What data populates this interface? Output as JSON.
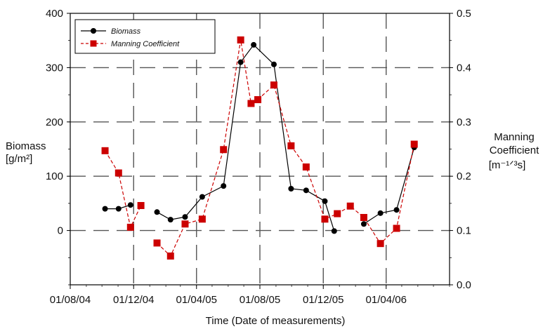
{
  "chart_data": {
    "type": "line",
    "title": "",
    "xlabel": "Time (Date of measurements)",
    "x_ticks": [
      "01/08/04",
      "01/12/04",
      "01/04/05",
      "01/08/05",
      "01/12/05",
      "01/04/06"
    ],
    "x_range": [
      "2004-08-01",
      "2006-08-01"
    ],
    "y_left": {
      "label_line1": "Biomass",
      "label_line2": "[g/m²]",
      "range": [
        -100,
        400
      ],
      "ticks": [
        0,
        100,
        200,
        300,
        400
      ]
    },
    "y_right": {
      "label_line1": "Manning",
      "label_line2": "Coefficient",
      "label_line3": "[m⁻¹ᐟ³s]",
      "range": [
        0.0,
        0.5
      ],
      "ticks": [
        "0.0",
        "0.1",
        "0.2",
        "0.3",
        "0.4",
        "0.5"
      ]
    },
    "grid": "dashed",
    "legend": "top-left",
    "series": [
      {
        "name": "Biomass",
        "axis": "left",
        "color": "#000000",
        "marker": "circle",
        "segments": [
          [
            {
              "x": "2004-10-07",
              "y": 40
            },
            {
              "x": "2004-11-02",
              "y": 40
            },
            {
              "x": "2004-11-25",
              "y": 47
            }
          ],
          [
            {
              "x": "2005-01-15",
              "y": 34
            },
            {
              "x": "2005-02-10",
              "y": 20
            },
            {
              "x": "2005-03-10",
              "y": 25
            },
            {
              "x": "2005-04-12",
              "y": 62
            },
            {
              "x": "2005-05-23",
              "y": 82
            },
            {
              "x": "2005-06-25",
              "y": 310
            },
            {
              "x": "2005-07-20",
              "y": 342
            },
            {
              "x": "2005-08-28",
              "y": 306
            },
            {
              "x": "2005-09-30",
              "y": 77
            },
            {
              "x": "2005-10-29",
              "y": 74
            },
            {
              "x": "2005-12-04",
              "y": 54
            },
            {
              "x": "2005-12-22",
              "y": -1
            }
          ],
          [
            {
              "x": "2006-02-17",
              "y": 12
            },
            {
              "x": "2006-03-21",
              "y": 32
            },
            {
              "x": "2006-04-21",
              "y": 38
            },
            {
              "x": "2006-05-25",
              "y": 153
            }
          ]
        ]
      },
      {
        "name": "Manning Coefficient",
        "axis": "right",
        "color": "#cc0000",
        "marker": "square",
        "segments": [
          [
            {
              "x": "2004-10-07",
              "y": 0.247
            },
            {
              "x": "2004-11-02",
              "y": 0.206
            },
            {
              "x": "2004-11-25",
              "y": 0.106
            },
            {
              "x": "2004-12-15",
              "y": 0.146
            }
          ],
          [
            {
              "x": "2005-01-15",
              "y": 0.077
            },
            {
              "x": "2005-02-10",
              "y": 0.053
            },
            {
              "x": "2005-03-10",
              "y": 0.112
            },
            {
              "x": "2005-04-12",
              "y": 0.121
            },
            {
              "x": "2005-05-23",
              "y": 0.249
            },
            {
              "x": "2005-06-25",
              "y": 0.451
            },
            {
              "x": "2005-07-15",
              "y": 0.334
            }
          ],
          [
            {
              "x": "2005-07-28",
              "y": 0.341
            },
            {
              "x": "2005-08-28",
              "y": 0.368
            },
            {
              "x": "2005-09-30",
              "y": 0.256
            },
            {
              "x": "2005-10-29",
              "y": 0.217
            },
            {
              "x": "2005-12-04",
              "y": 0.121
            },
            {
              "x": "2005-12-28",
              "y": 0.131
            },
            {
              "x": "2006-01-22",
              "y": 0.145
            },
            {
              "x": "2006-02-17",
              "y": 0.124
            },
            {
              "x": "2006-03-21",
              "y": 0.076
            },
            {
              "x": "2006-04-21",
              "y": 0.104
            },
            {
              "x": "2006-05-25",
              "y": 0.259
            }
          ]
        ]
      }
    ]
  }
}
